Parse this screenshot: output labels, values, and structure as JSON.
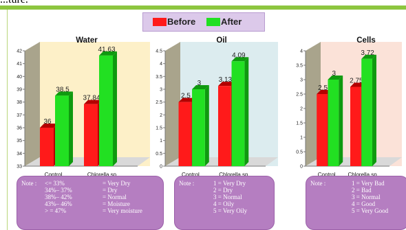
{
  "header_fragment": "...ture.",
  "legend": {
    "items": [
      {
        "label": "Before",
        "color": "#ff1a1a"
      },
      {
        "label": "After",
        "color": "#22e022"
      }
    ]
  },
  "colors": {
    "before": "#ff1a1a",
    "before_dark": "#b30000",
    "after": "#22e022",
    "after_dark": "#0f9a0f",
    "accent_rule": "#8dc63f",
    "note_bg": "#b57ec1"
  },
  "chart_data": [
    {
      "type": "bar",
      "title": "Water",
      "categories": [
        "Control",
        "Chlorella sp"
      ],
      "series": [
        {
          "name": "Before",
          "values": [
            36,
            37.84
          ]
        },
        {
          "name": "After",
          "values": [
            38.5,
            41.63
          ]
        }
      ],
      "data_labels": [
        [
          "36",
          "37.84"
        ],
        [
          "38.5",
          "41.63"
        ]
      ],
      "ylim": [
        33,
        42
      ],
      "yticks": [
        "33",
        "34",
        "35",
        "36",
        "37",
        "38",
        "39",
        "40",
        "41",
        "42"
      ],
      "background": "#fdf0c8"
    },
    {
      "type": "bar",
      "title": "Oil",
      "categories": [
        "Control",
        "Chlorella sp"
      ],
      "series": [
        {
          "name": "Before",
          "values": [
            2.5,
            3.13
          ]
        },
        {
          "name": "After",
          "values": [
            3,
            4.09
          ]
        }
      ],
      "data_labels": [
        [
          "2.5",
          "3.13"
        ],
        [
          "3",
          "4.09"
        ]
      ],
      "ylim": [
        0,
        4.5
      ],
      "yticks": [
        "0",
        "0.5",
        "1",
        "1.5",
        "2",
        "2.5",
        "3",
        "3.5",
        "4",
        "4.5"
      ],
      "background": "#dcecef"
    },
    {
      "type": "bar",
      "title": "Cells",
      "categories": [
        "Control",
        "Chlorella sp"
      ],
      "series": [
        {
          "name": "Before",
          "values": [
            2.5,
            2.75
          ]
        },
        {
          "name": "After",
          "values": [
            3,
            3.72
          ]
        }
      ],
      "data_labels": [
        [
          "2.5",
          "2.75"
        ],
        [
          "3",
          "3.72"
        ]
      ],
      "ylim": [
        0,
        4
      ],
      "yticks": [
        "0",
        "0.5",
        "1",
        "1.5",
        "2",
        "2.5",
        "3",
        "3.5",
        "4"
      ],
      "background": "#fbe2d8"
    }
  ],
  "notes": [
    {
      "label": "Note :",
      "ranges": [
        "<= 33%",
        "34%– 37%",
        "38%– 42%",
        "43%– 46%",
        "> = 47%"
      ],
      "meanings": [
        "= Very Dry",
        "= Dry",
        "= Normal",
        "= Moisture",
        "= Very moisture"
      ]
    },
    {
      "label": "Note :",
      "ranges": [
        "1 = Very Dry",
        "2 = Dry",
        "3 = Normal",
        "4 = Oily",
        "5 = Very Oily"
      ],
      "meanings": []
    },
    {
      "label": "Note :",
      "ranges": [
        "1 = Very Bad",
        "2 = Bad",
        "3 = Normal",
        "4 = Good",
        "5 = Very Good"
      ],
      "meanings": []
    }
  ]
}
